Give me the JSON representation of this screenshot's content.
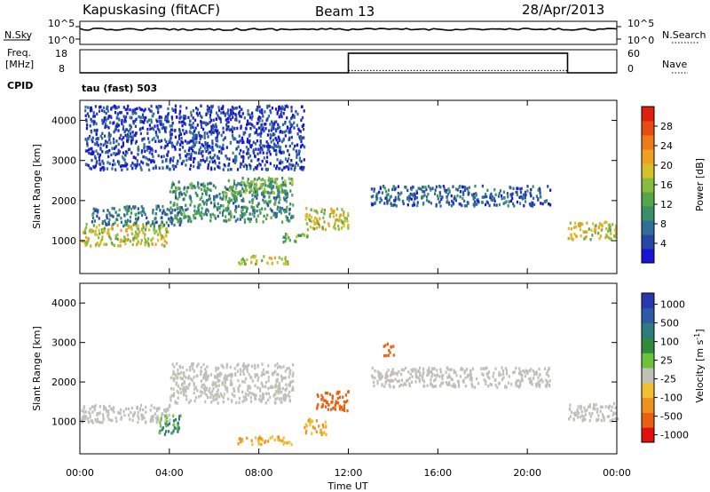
{
  "header": {
    "station": "Kapuskasing (fitACF)",
    "beam": "Beam 13",
    "date": "28/Apr/2013"
  },
  "sky_panel": {
    "left_label": "N.Sky",
    "right_label": "N.Search",
    "left_ticks": [
      "10^5",
      "10^0"
    ],
    "right_ticks": [
      "10^5",
      "10^0"
    ]
  },
  "freq_panel": {
    "left_label_1": "Freq.",
    "left_label_2": "[MHz]",
    "right_label": "Nave",
    "left_ticks": [
      "18",
      "8"
    ],
    "right_ticks": [
      "60",
      "0"
    ]
  },
  "cpid": {
    "label": "CPID",
    "text": "tau (fast) 503"
  },
  "axes": {
    "ylabel": "Slant Range [km]",
    "xlabel": "Time UT",
    "y_ticks": [
      "1000",
      "2000",
      "3000",
      "4000"
    ],
    "x_ticks": [
      "00:00",
      "04:00",
      "08:00",
      "12:00",
      "16:00",
      "20:00",
      "00:00"
    ]
  },
  "power_colorbar": {
    "label": "Power [dB]",
    "ticks": [
      "4",
      "8",
      "12",
      "16",
      "20",
      "24",
      "28"
    ],
    "colors": [
      "#1a14d8",
      "#2646a8",
      "#2f6f96",
      "#3a8f6a",
      "#55a64a",
      "#86bd3e",
      "#d4c12a",
      "#f0a020",
      "#ef7a18",
      "#e84c12",
      "#e0200e"
    ]
  },
  "velocity_colorbar": {
    "label": "Velocity [m s",
    "label_sup": "-1",
    "label_end": "]",
    "ticks": [
      "1000",
      "500",
      "100",
      "25",
      "-25",
      "-100",
      "-500",
      "-1000"
    ],
    "colors": [
      "#2838b0",
      "#2e5aa8",
      "#2f7a7c",
      "#2f8a3c",
      "#6cc23c",
      "#c0c0b8",
      "#f0c030",
      "#f09020",
      "#e86010",
      "#e01010"
    ]
  },
  "chart_data": [
    {
      "type": "line",
      "title": "",
      "left_series": "N.Sky",
      "right_series": "N.Search",
      "x_range_hours": [
        0,
        24
      ],
      "y_scale": "log",
      "sky_level": "~10^4 roughly constant"
    },
    {
      "type": "line",
      "left_series": "Freq. [MHz]",
      "right_series": "Nave",
      "x": [
        0,
        12,
        12,
        21.8,
        21.8,
        24
      ],
      "freq_mhz": [
        8,
        8,
        16.5,
        16.5,
        8,
        8
      ],
      "left_range": [
        8,
        18
      ],
      "right_range": [
        0,
        60
      ],
      "nave_approx": 6
    },
    {
      "type": "heatmap",
      "name": "power",
      "title": "Power [dB]",
      "xlabel": "Time UT",
      "ylabel": "Slant Range [km]",
      "x_range_hours": [
        0,
        24
      ],
      "y_range_km": [
        180,
        4500
      ],
      "color_range_db": [
        0,
        32
      ],
      "regions": [
        {
          "t0": 0.0,
          "t1": 4.0,
          "r0": 900,
          "r1": 1450,
          "value_db": 18
        },
        {
          "t0": 0.5,
          "t1": 4.5,
          "r0": 1400,
          "r1": 1900,
          "value_db": 8
        },
        {
          "t0": 4.0,
          "t1": 9.5,
          "r0": 1500,
          "r1": 2500,
          "value_db": 10
        },
        {
          "t0": 6.5,
          "t1": 9.5,
          "r0": 2200,
          "r1": 2600,
          "value_db": 14
        },
        {
          "t0": 7.0,
          "t1": 9.5,
          "r0": 450,
          "r1": 650,
          "value_db": 18
        },
        {
          "t0": 9.0,
          "t1": 10.2,
          "r0": 1000,
          "r1": 1200,
          "value_db": 14
        },
        {
          "t0": 10.0,
          "t1": 12.0,
          "r0": 1300,
          "r1": 1850,
          "value_db": 18
        },
        {
          "t0": 13.0,
          "t1": 21.0,
          "r0": 1900,
          "r1": 2400,
          "value_db": 6
        },
        {
          "t0": 21.8,
          "t1": 24.0,
          "r0": 1050,
          "r1": 1500,
          "value_db": 18
        },
        {
          "t0": 0.2,
          "t1": 10.0,
          "r0": 2800,
          "r1": 4400,
          "value_db": 4
        }
      ]
    },
    {
      "type": "heatmap",
      "name": "velocity",
      "title": "Velocity [m s-1]",
      "xlabel": "Time UT",
      "ylabel": "Slant Range [km]",
      "x_range_hours": [
        0,
        24
      ],
      "y_range_km": [
        180,
        4500
      ],
      "regions": [
        {
          "t0": 0.0,
          "t1": 4.0,
          "r0": 1000,
          "r1": 1450,
          "velocity": 0
        },
        {
          "t0": 4.0,
          "t1": 9.5,
          "r0": 1500,
          "r1": 2500,
          "velocity": 0
        },
        {
          "t0": 3.5,
          "t1": 4.5,
          "r0": 700,
          "r1": 1200,
          "velocity": 100
        },
        {
          "t0": 7.0,
          "t1": 9.5,
          "r0": 450,
          "r1": 650,
          "velocity": -100
        },
        {
          "t0": 10.0,
          "t1": 11.0,
          "r0": 700,
          "r1": 1100,
          "velocity": -100
        },
        {
          "t0": 10.5,
          "t1": 12.0,
          "r0": 1300,
          "r1": 1800,
          "velocity": -500
        },
        {
          "t0": 13.5,
          "t1": 14.0,
          "r0": 2700,
          "r1": 3000,
          "velocity": -500
        },
        {
          "t0": 13.0,
          "t1": 21.0,
          "r0": 1900,
          "r1": 2400,
          "velocity": 0
        },
        {
          "t0": 21.8,
          "t1": 24.0,
          "r0": 1050,
          "r1": 1500,
          "velocity": 0
        }
      ]
    }
  ]
}
